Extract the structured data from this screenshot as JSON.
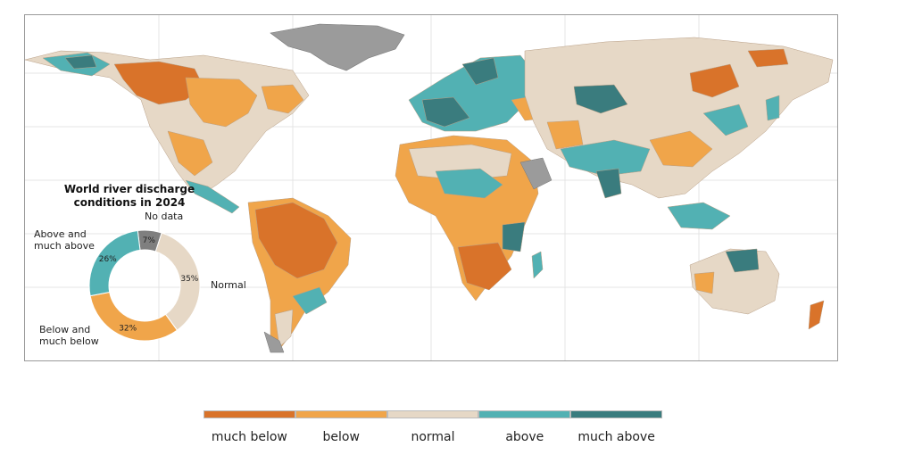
{
  "donut": {
    "title_line1": "World river discharge",
    "title_line2": "conditions in 2024",
    "segments": [
      {
        "key": "no_data",
        "label": "No data",
        "percent": 7,
        "percent_label": "7%",
        "color": "#7f7f7f"
      },
      {
        "key": "normal",
        "label": "Normal",
        "percent": 35,
        "percent_label": "35%",
        "color": "#e6d8c6"
      },
      {
        "key": "below",
        "label": "Below and much below",
        "label_line1": "Below and",
        "label_line2": "much below",
        "percent": 32,
        "percent_label": "32%",
        "color": "#f0a54a"
      },
      {
        "key": "above",
        "label": "Above and much above",
        "label_line1": "Above and",
        "label_line2": "much above",
        "percent": 26,
        "percent_label": "26%",
        "color": "#52b1b3"
      }
    ]
  },
  "legend": [
    {
      "label": "much below",
      "color": "#d9732a"
    },
    {
      "label": "below",
      "color": "#f0a54a"
    },
    {
      "label": "normal",
      "color": "#e6d8c6"
    },
    {
      "label": "above",
      "color": "#52b1b3"
    },
    {
      "label": "much above",
      "color": "#3a7c7e"
    }
  ],
  "colors": {
    "no_data_land": "#9b9b9b",
    "graticule": "#e4e4e4",
    "ocean": "#ffffff"
  }
}
